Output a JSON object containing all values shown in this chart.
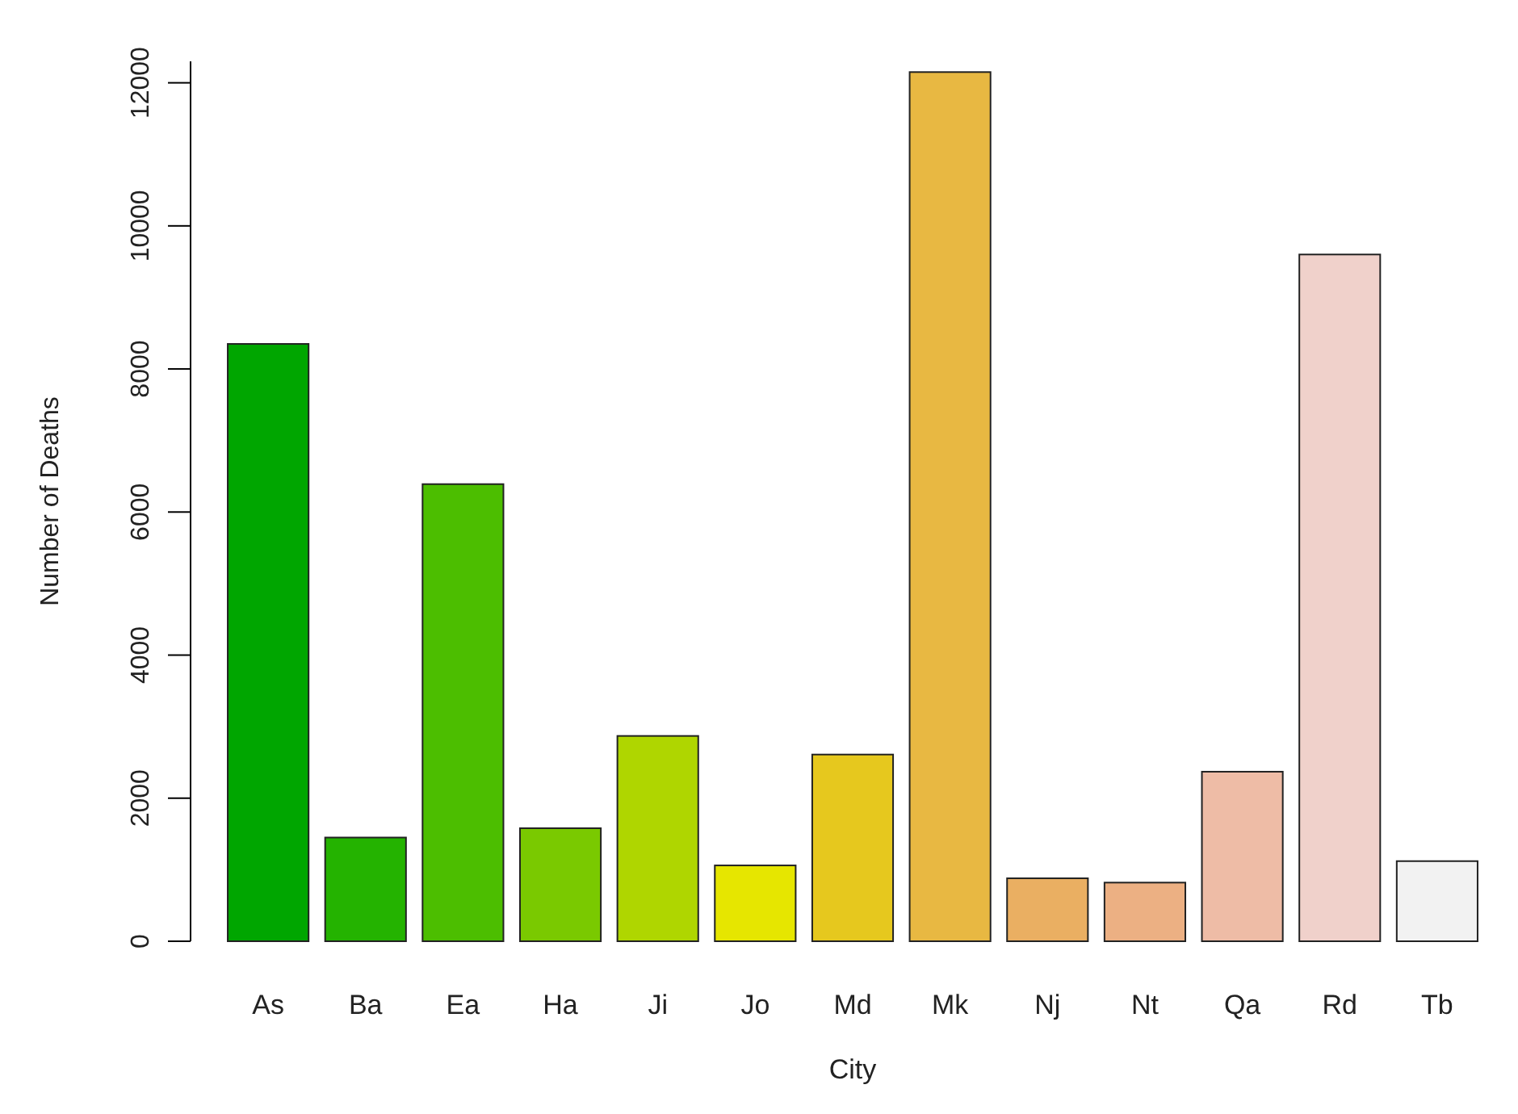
{
  "chart_data": {
    "type": "bar",
    "xlabel": "City",
    "ylabel": "Number of Deaths",
    "categories": [
      "As",
      "Ba",
      "Ea",
      "Ha",
      "Ji",
      "Jo",
      "Md",
      "Mk",
      "Nj",
      "Nt",
      "Qa",
      "Rd",
      "Tb"
    ],
    "values": [
      8350,
      1450,
      6390,
      1580,
      2870,
      1060,
      2610,
      12150,
      880,
      820,
      2370,
      9600,
      1120
    ],
    "colors": [
      "#00a600",
      "#24b300",
      "#4cbe00",
      "#7ac900",
      "#afd600",
      "#e6e600",
      "#e6c81e",
      "#e8b842",
      "#eaaf62",
      "#ecb083",
      "#eebca6",
      "#f0d1cb",
      "#f2f2f2"
    ],
    "ylim": [
      0,
      12300
    ],
    "yticks": [
      0,
      2000,
      4000,
      6000,
      8000,
      10000,
      12000
    ],
    "grid": false
  }
}
